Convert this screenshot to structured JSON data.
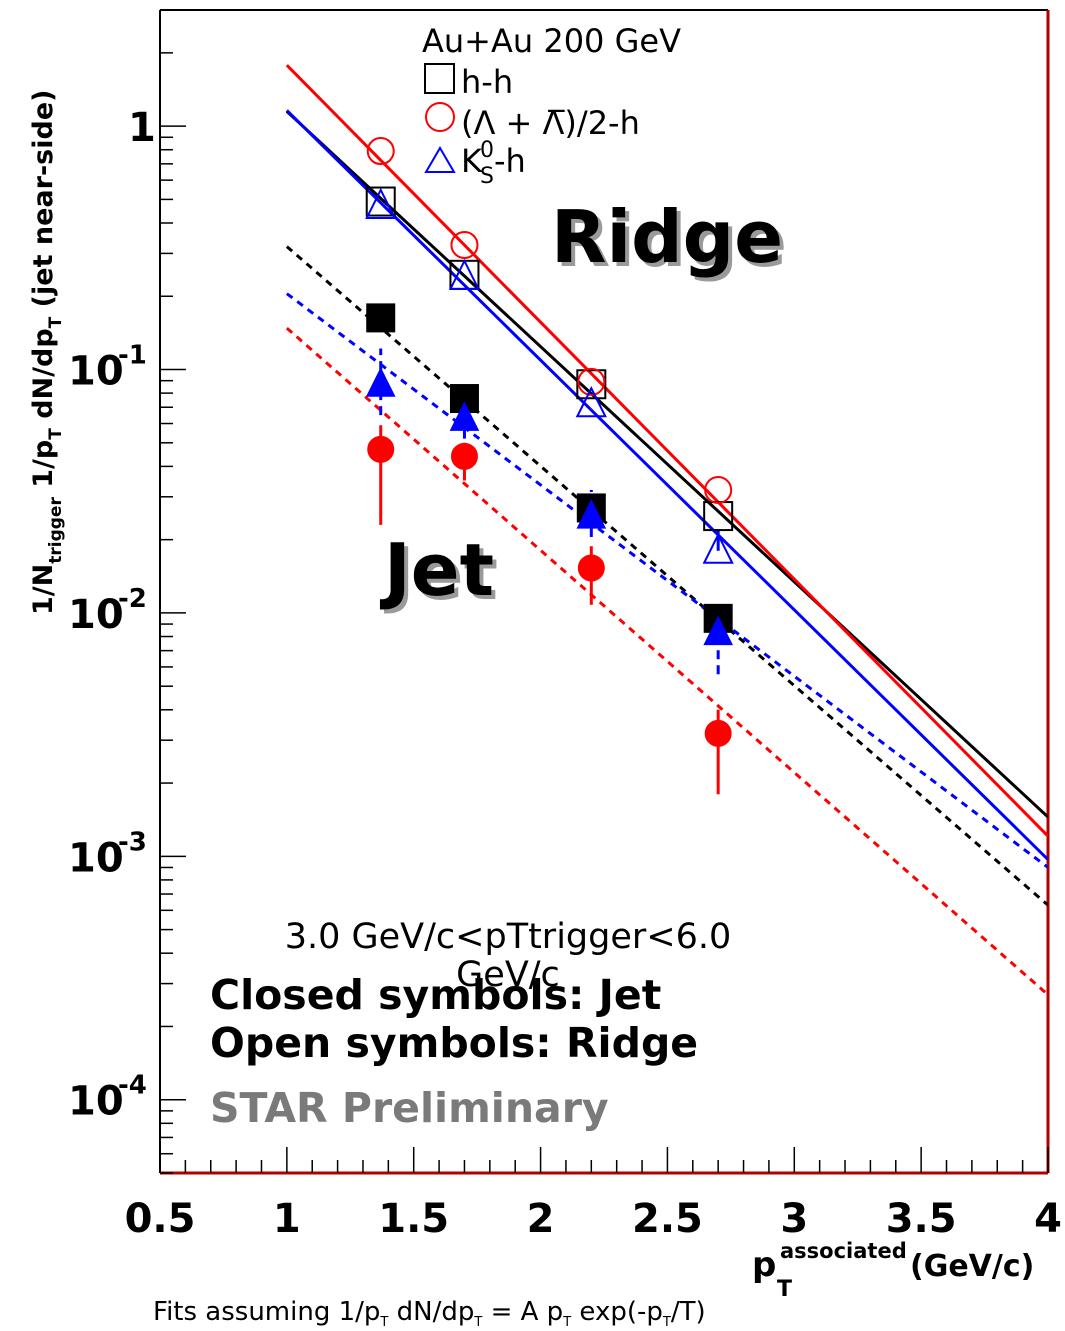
{
  "chart_data": {
    "type": "scatter",
    "xlabel_main": "p",
    "xlabel_sub": "T",
    "xlabel_sup": "associated",
    "xlabel_unit": "(GeV/c)",
    "ylabel": "1/N_trigger 1/p_T dN/dp_T (jet near-side)",
    "ylabel_parts": {
      "p1": "1/N",
      "s1": "trigger",
      "p2": " 1/p",
      "s2": "T",
      "p3": " dN/dp",
      "s3": "T",
      "p4": " (jet near-side)"
    },
    "xlim": [
      0.5,
      4.0
    ],
    "ylim": [
      5e-05,
      3.0
    ],
    "yscale": "log",
    "xticks": [
      0.5,
      1,
      1.5,
      2,
      2.5,
      3,
      3.5,
      4
    ],
    "xtick_labels": [
      "0.5",
      "1",
      "1.5",
      "2",
      "2.5",
      "3",
      "3.5",
      "4"
    ],
    "yticks": [
      1,
      0.1,
      0.01,
      0.001,
      0.0001
    ],
    "ytick_labels": [
      {
        "base": "1",
        "exp": ""
      },
      {
        "base": "10",
        "exp": "-1"
      },
      {
        "base": "10",
        "exp": "-2"
      },
      {
        "base": "10",
        "exp": "-3"
      },
      {
        "base": "10",
        "exp": "-4"
      }
    ],
    "legend": {
      "header": "Au+Au 200 GeV",
      "entries": [
        {
          "marker": "open-square",
          "color": "#000000",
          "label": "h-h"
        },
        {
          "marker": "open-circle",
          "color": "#ff0000",
          "label": "(Λ + Λ̅)/2-h"
        },
        {
          "marker": "open-triangle",
          "color": "#0000ff",
          "label": "K",
          "label_sup": "0",
          "label_sub": "S",
          "label_tail": "-h"
        }
      ]
    },
    "series": [
      {
        "name": "h-h Ridge",
        "group": "ridge",
        "marker": "open-square",
        "color": "#000000",
        "x": [
          1.37,
          1.7,
          2.2,
          2.7
        ],
        "y": [
          0.49,
          0.245,
          0.087,
          0.025
        ],
        "err_lo": [
          0,
          0,
          0,
          0
        ],
        "err_hi": [
          0,
          0,
          0,
          0
        ]
      },
      {
        "name": "Lambda Ridge",
        "group": "ridge",
        "marker": "open-circle",
        "color": "#ff0000",
        "x": [
          1.37,
          1.7,
          2.2,
          2.7
        ],
        "y": [
          0.79,
          0.325,
          0.089,
          0.032
        ],
        "err_lo": [
          0,
          0,
          0,
          0
        ],
        "err_hi": [
          0,
          0,
          0,
          0
        ]
      },
      {
        "name": "K0s Ridge",
        "group": "ridge",
        "marker": "open-triangle",
        "color": "#0000ff",
        "x": [
          1.37,
          1.7,
          2.2,
          2.7
        ],
        "y": [
          0.47,
          0.24,
          0.072,
          0.018
        ],
        "err_lo": [
          0,
          0,
          0,
          0
        ],
        "err_hi": [
          0,
          0,
          0,
          0.004
        ]
      },
      {
        "name": "h-h Jet",
        "group": "jet",
        "marker": "filled-square",
        "color": "#000000",
        "x": [
          1.37,
          1.7,
          2.2,
          2.7
        ],
        "y": [
          0.163,
          0.076,
          0.027,
          0.0095
        ],
        "err_lo": [
          0,
          0,
          0,
          0
        ],
        "err_hi": [
          0,
          0,
          0,
          0
        ]
      },
      {
        "name": "Lambda Jet",
        "group": "jet",
        "marker": "filled-circle",
        "color": "#ff0000",
        "x": [
          1.37,
          1.7,
          2.2,
          2.7
        ],
        "y": [
          0.047,
          0.044,
          0.0153,
          0.0032
        ],
        "err_lo": [
          0.024,
          0.009,
          0.0045,
          0.0014
        ],
        "err_hi": [
          0.012,
          0.006,
          0.0035,
          0.0008
        ]
      },
      {
        "name": "K0s Jet",
        "group": "jet",
        "marker": "filled-triangle",
        "color": "#0000ff",
        "x": [
          1.37,
          1.7,
          2.2,
          2.7
        ],
        "y": [
          0.087,
          0.063,
          0.025,
          0.0083
        ],
        "err_lo": [
          0.022,
          0.011,
          0.0045,
          0.0027
        ],
        "err_hi": [
          0.035,
          0.012,
          0.007,
          0.0027
        ]
      }
    ],
    "fits": [
      {
        "name": "h-h Ridge fit",
        "color": "#000000",
        "style": "solid",
        "points": [
          [
            1.0,
            1.15
          ],
          [
            4.0,
            0.00145
          ]
        ]
      },
      {
        "name": "Lambda Ridge fit",
        "color": "#ff0000",
        "style": "solid",
        "points": [
          [
            1.0,
            1.78
          ],
          [
            4.0,
            0.00121
          ]
        ]
      },
      {
        "name": "K0s Ridge fit",
        "color": "#0000ff",
        "style": "solid",
        "points": [
          [
            1.0,
            1.16
          ],
          [
            4.0,
            0.00097
          ]
        ]
      },
      {
        "name": "h-h Jet fit",
        "color": "#000000",
        "style": "dashed",
        "points": [
          [
            1.0,
            0.32
          ],
          [
            4.0,
            0.00063
          ]
        ]
      },
      {
        "name": "K0s Jet fit",
        "color": "#0000ff",
        "style": "dashed",
        "points": [
          [
            1.0,
            0.205
          ],
          [
            4.0,
            0.0009
          ]
        ]
      },
      {
        "name": "Lambda Jet fit",
        "color": "#ff0000",
        "style": "dashed",
        "points": [
          [
            1.0,
            0.148
          ],
          [
            4.0,
            0.00027
          ]
        ]
      }
    ],
    "annotations": {
      "ridge_label": "Ridge",
      "jet_label": "Jet",
      "trigger_range": "3.0 GeV/c<pTtrigger<6.0 GeV/c",
      "closed_symbols": "Closed symbols: Jet",
      "open_symbols": "Open symbols: Ridge",
      "preliminary": "STAR Preliminary",
      "fit_caption_parts": [
        "Fits assuming 1/p",
        "T",
        " dN/dp",
        "T",
        " = A p",
        "T",
        " exp(-p",
        "T",
        "/T)"
      ]
    }
  },
  "colors": {
    "frame": "#000000",
    "right_border": "#b00000",
    "bottom_border": "#b00000",
    "preliminary": "#7a7a7a"
  }
}
